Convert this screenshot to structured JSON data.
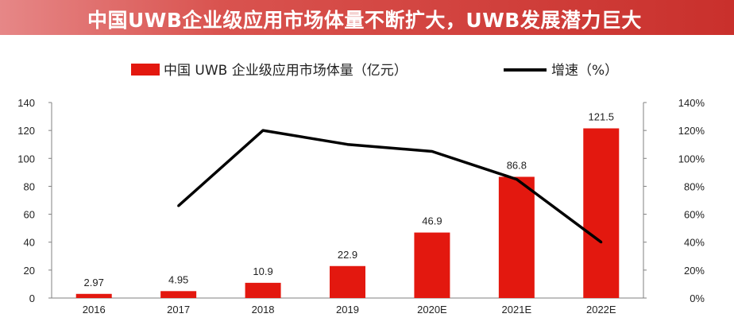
{
  "header": {
    "title": "中国UWB企业级应用市场体量不断扩大，UWB发展潜力巨大"
  },
  "colors": {
    "bar": "#e3180f",
    "line": "#000000",
    "banner": "#c9302c"
  },
  "chart_data": {
    "type": "bar",
    "categories": [
      "2016",
      "2017",
      "2018",
      "2019",
      "2020E",
      "2021E",
      "2022E"
    ],
    "series": [
      {
        "name": "中国 UWB 企业级应用市场体量（亿元）",
        "type": "bar",
        "axis": "left",
        "values": [
          2.97,
          4.95,
          10.9,
          22.9,
          46.9,
          86.8,
          121.5
        ]
      },
      {
        "name": "增速（%）",
        "type": "line",
        "axis": "right",
        "values": [
          null,
          66,
          120,
          110,
          105,
          85,
          40
        ]
      }
    ],
    "data_labels": [
      "2.97",
      "4.95",
      "10.9",
      "22.9",
      "46.9",
      "86.8",
      "121.5"
    ],
    "ylim": [
      0,
      140
    ],
    "y2lim": [
      0,
      140
    ],
    "yticks": [
      "0",
      "20",
      "40",
      "60",
      "80",
      "100",
      "120",
      "140"
    ],
    "y2ticks": [
      "0%",
      "20%",
      "40%",
      "60%",
      "80%",
      "100%",
      "120%",
      "140%"
    ],
    "legend_position": "top",
    "grid": false
  }
}
